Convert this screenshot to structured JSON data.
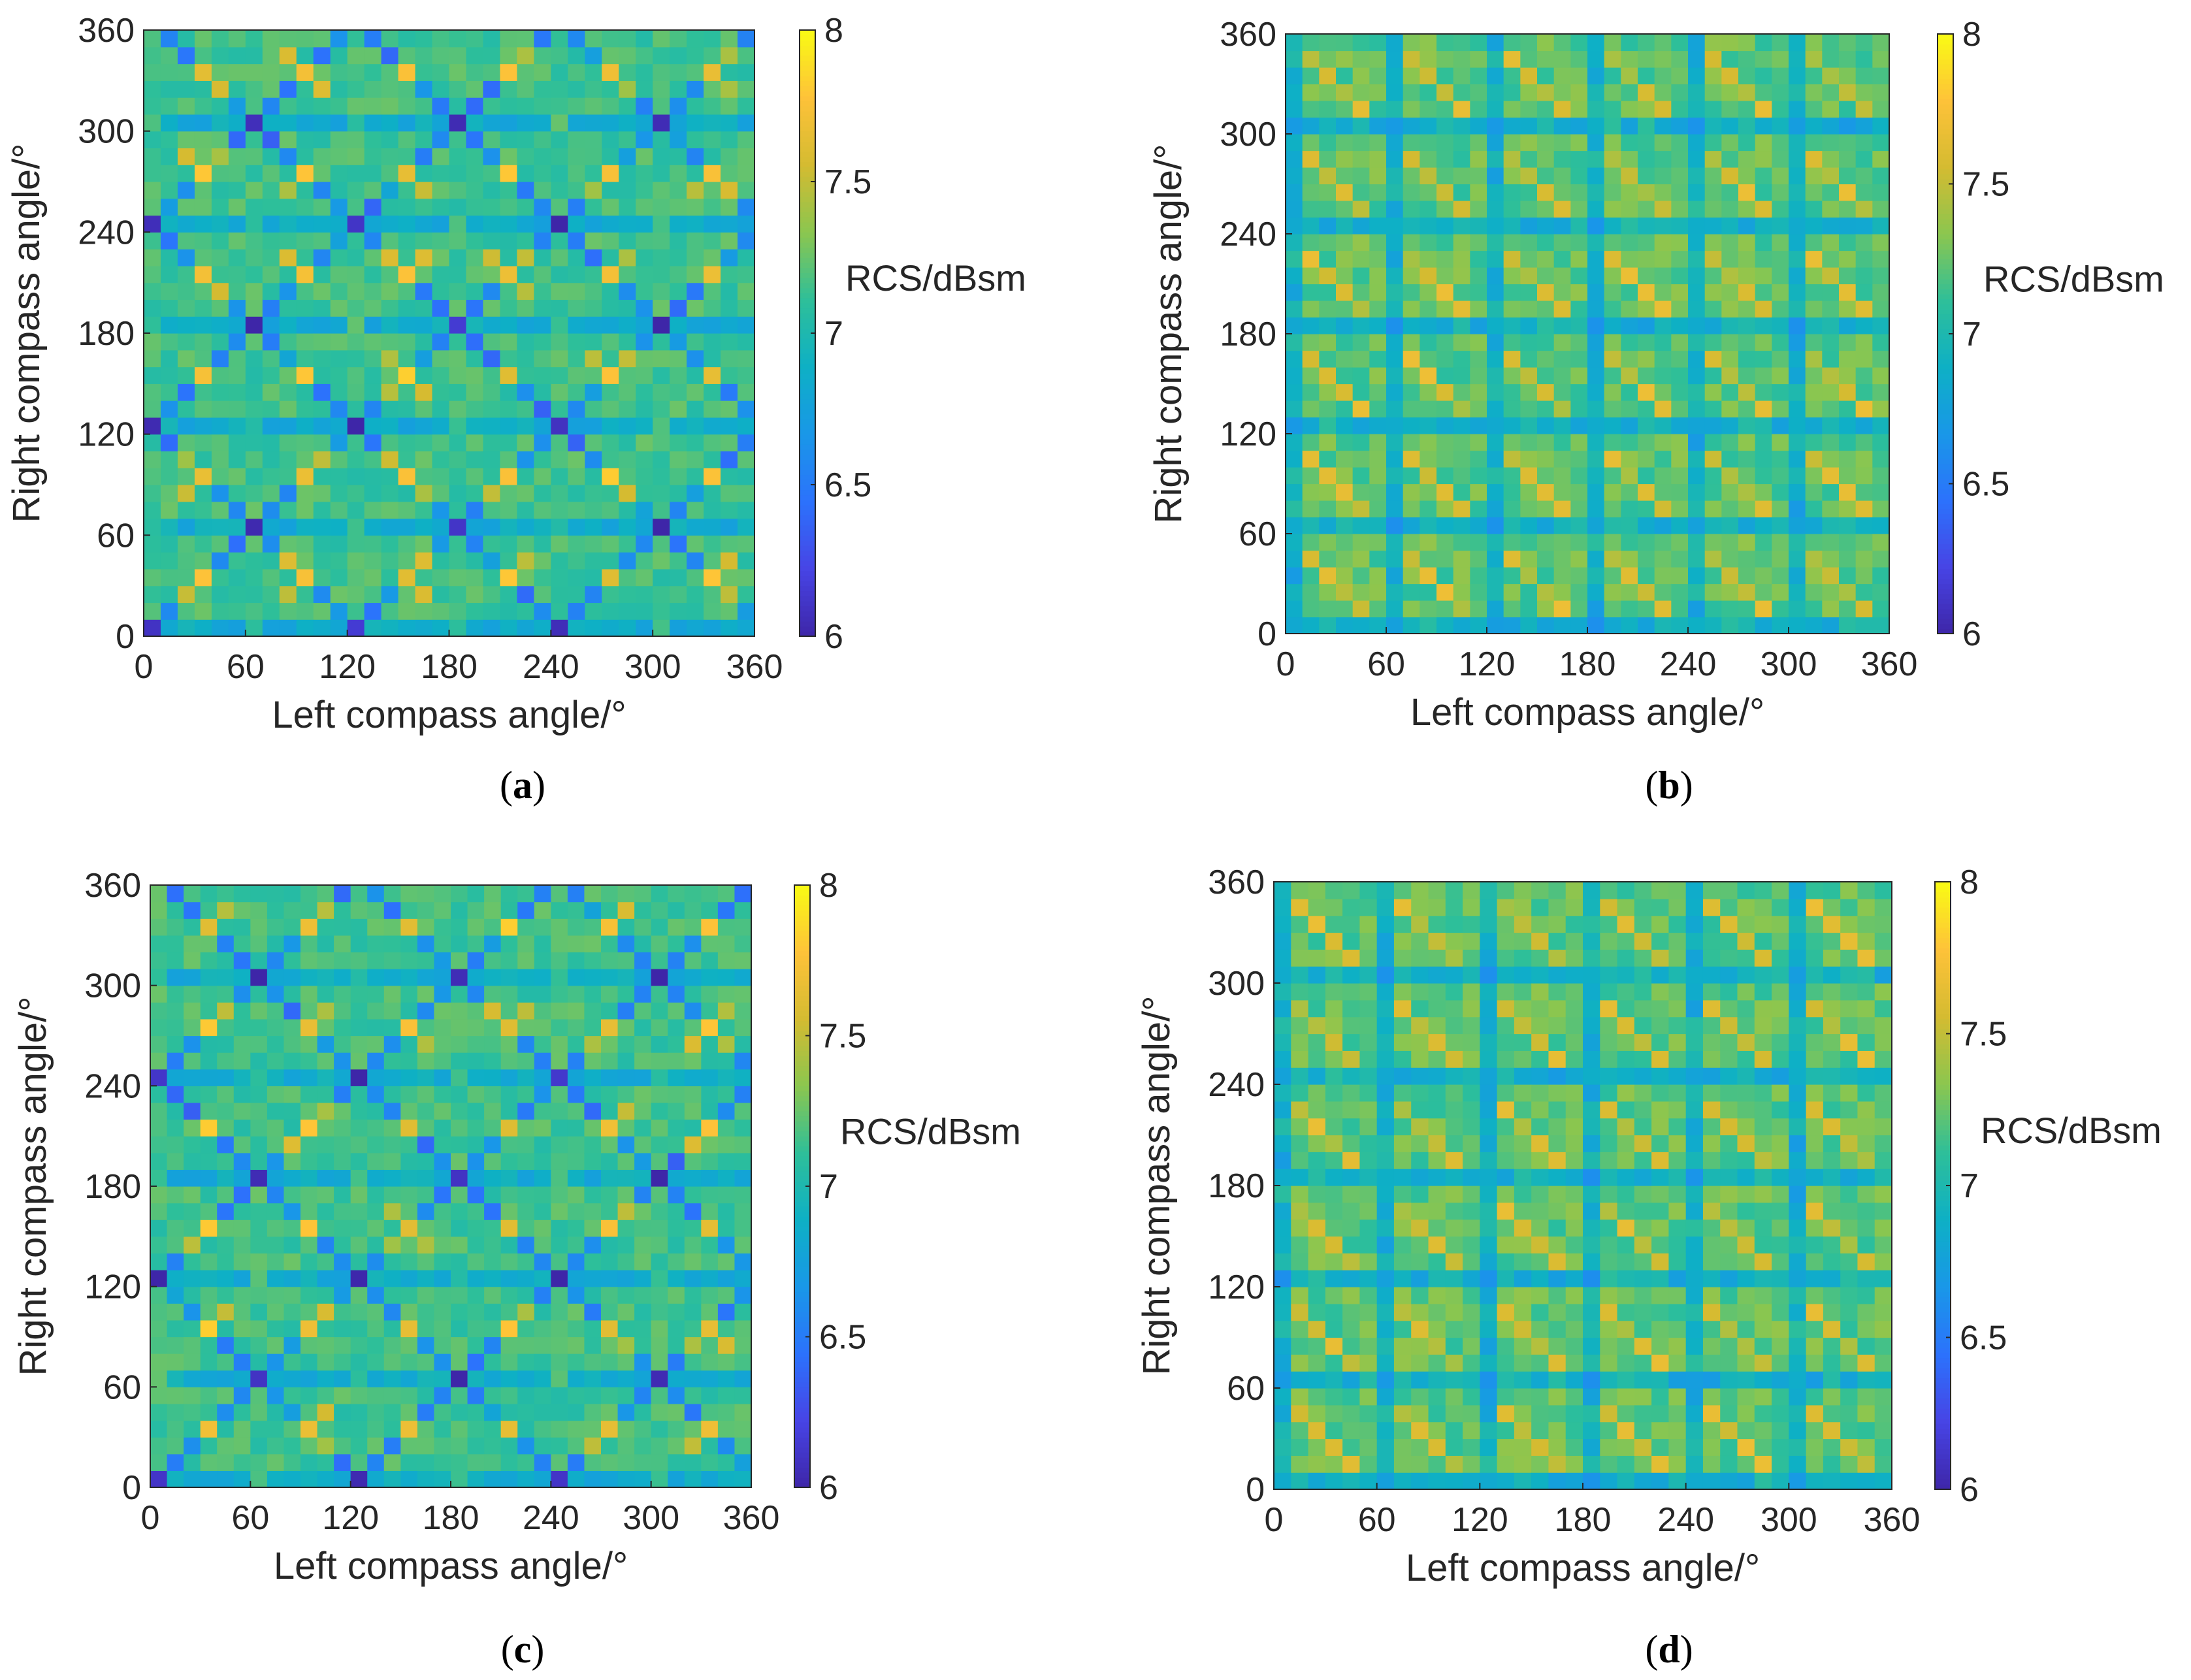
{
  "figure": {
    "captions": [
      "a",
      "b",
      "c",
      "d"
    ]
  },
  "colormap": [
    "#3e26a8",
    "#4744e5",
    "#2c72fc",
    "#1997e8",
    "#0eb0c5",
    "#2ebf99",
    "#8bc64f",
    "#d4bb31",
    "#fec239",
    "#f9fb14"
  ],
  "chart_data": [
    {
      "panel": "a",
      "type": "heatmap",
      "pattern": "diagonal-lattice",
      "xlabel": "Left compass angle/°",
      "ylabel": "Right compass angle/°",
      "xlim": [
        0,
        360
      ],
      "ylim": [
        0,
        360
      ],
      "xticks": [
        0,
        60,
        120,
        180,
        240,
        300,
        360
      ],
      "yticks": [
        0,
        60,
        120,
        180,
        240,
        300,
        360
      ],
      "grid_step_deg": 10,
      "clim": [
        6,
        8
      ],
      "cticks": [
        6,
        6.5,
        7,
        7.5,
        8
      ],
      "cticklabels": [
        "6",
        "6.5",
        "7",
        "7.5",
        "8"
      ],
      "colorbar_label": "RCS/dBsm",
      "value_range_estimate": [
        6.0,
        7.8
      ],
      "legend": "colorbar right"
    },
    {
      "panel": "b",
      "type": "heatmap",
      "pattern": "block-lattice",
      "xlabel": "Left compass angle/°",
      "ylabel": "Right compass angle/°",
      "xlim": [
        0,
        360
      ],
      "ylim": [
        0,
        360
      ],
      "xticks": [
        0,
        60,
        120,
        180,
        240,
        300,
        360
      ],
      "yticks": [
        0,
        60,
        120,
        180,
        240,
        300,
        360
      ],
      "grid_step_deg": 10,
      "clim": [
        6,
        8
      ],
      "cticks": [
        6,
        6.5,
        7,
        7.5,
        8
      ],
      "cticklabels": [
        "6",
        "6.5",
        "7",
        "7.5",
        "8"
      ],
      "colorbar_label": "RCS/dBsm",
      "value_range_estimate": [
        6.8,
        7.6
      ],
      "legend": "colorbar right"
    },
    {
      "panel": "c",
      "type": "heatmap",
      "pattern": "diagonal-lattice",
      "xlabel": "Left compass angle/°",
      "ylabel": "Right compass angle/°",
      "xlim": [
        0,
        360
      ],
      "ylim": [
        0,
        360
      ],
      "xticks": [
        0,
        60,
        120,
        180,
        240,
        300,
        360
      ],
      "yticks": [
        0,
        60,
        120,
        180,
        240,
        300,
        360
      ],
      "grid_step_deg": 10,
      "clim": [
        6,
        8
      ],
      "cticks": [
        6,
        6.5,
        7,
        7.5,
        8
      ],
      "cticklabels": [
        "6",
        "6.5",
        "7",
        "7.5",
        "8"
      ],
      "colorbar_label": "RCS/dBsm",
      "value_range_estimate": [
        6.0,
        7.8
      ],
      "legend": "colorbar right"
    },
    {
      "panel": "d",
      "type": "heatmap",
      "pattern": "block-lattice",
      "xlabel": "Left compass angle/°",
      "ylabel": "Right compass angle/°",
      "xlim": [
        0,
        360
      ],
      "ylim": [
        0,
        360
      ],
      "xticks": [
        0,
        60,
        120,
        180,
        240,
        300,
        360
      ],
      "yticks": [
        0,
        60,
        120,
        180,
        240,
        300,
        360
      ],
      "grid_step_deg": 10,
      "clim": [
        6,
        8
      ],
      "cticks": [
        6,
        6.5,
        7,
        7.5,
        8
      ],
      "cticklabels": [
        "6",
        "6.5",
        "7",
        "7.5",
        "8"
      ],
      "colorbar_label": "RCS/dBsm",
      "value_range_estimate": [
        6.8,
        7.6
      ],
      "legend": "colorbar right"
    }
  ]
}
